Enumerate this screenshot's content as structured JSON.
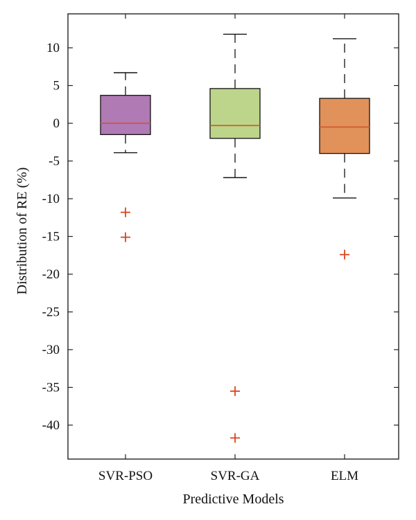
{
  "chart_data": {
    "type": "boxplot",
    "title": "",
    "xlabel": "Predictive Models",
    "ylabel": "Distribution of RE (%)",
    "ylim": [
      -44.5,
      14.5
    ],
    "yticks": [
      10,
      5,
      0,
      -5,
      -10,
      -15,
      -20,
      -25,
      -30,
      -35,
      -40
    ],
    "ytick_labels": [
      "10",
      "5",
      "0",
      "-5",
      "-10",
      "-15",
      "-20",
      "-25",
      "-30",
      "-35",
      "-40"
    ],
    "grid": false,
    "categories": [
      "SVR-PSO",
      "SVR-GA",
      "ELM"
    ],
    "series": [
      {
        "category": "SVR-PSO",
        "whisker_low": -3.9,
        "q1": -1.5,
        "median": 0.0,
        "q3": 3.7,
        "whisker_high": 6.7,
        "outliers": [
          -11.8,
          -15.1
        ],
        "color": "#b07ab4"
      },
      {
        "category": "SVR-GA",
        "whisker_low": -7.2,
        "q1": -2.0,
        "median": -0.3,
        "q3": 4.6,
        "whisker_high": 11.8,
        "outliers": [
          -35.5,
          -41.7
        ],
        "color": "#bcd58a"
      },
      {
        "category": "ELM",
        "whisker_low": -9.9,
        "q1": -4.0,
        "median": -0.5,
        "q3": 3.3,
        "whisker_high": 11.2,
        "outliers": [
          -17.4
        ],
        "color": "#e0925a"
      }
    ],
    "median_color": "#d2542a",
    "outlier_color": "#d8461c"
  }
}
